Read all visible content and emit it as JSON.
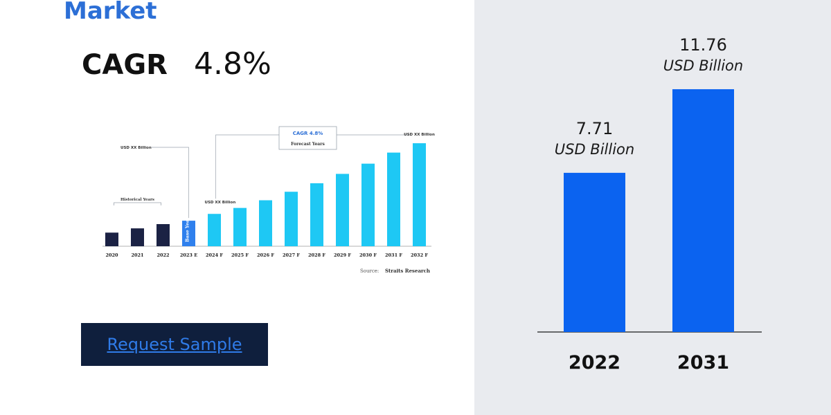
{
  "header": {
    "title": "Market",
    "cagr_label": "CAGR",
    "cagr_value": "4.8%"
  },
  "button": {
    "label": "Request Sample"
  },
  "colors": {
    "accent": "#2c6fd6",
    "historical_bar": "#1b2244",
    "base_year_bar": "#2f80ed",
    "forecast_bar": "#1ec8f4",
    "main_bar": "#0b63f0",
    "button_bg": "#0f1f3d"
  },
  "chart_data": [
    {
      "type": "bar",
      "categories": [
        "2020",
        "2021",
        "2022",
        "2023 E",
        "2024 F",
        "2025 F",
        "2026 F",
        "2027 F",
        "2028 F",
        "2029 F",
        "2030 F",
        "2031 F",
        "2032 F"
      ],
      "values": [
        16,
        21,
        26,
        30,
        38,
        45,
        54,
        64,
        74,
        85,
        97,
        110,
        121
      ],
      "bar_kinds": [
        "historical",
        "historical",
        "historical",
        "base",
        "forecast",
        "forecast",
        "forecast",
        "forecast",
        "forecast",
        "forecast",
        "forecast",
        "forecast",
        "forecast"
      ],
      "ylim": [
        0,
        130
      ],
      "annotations": {
        "usd_xx_left": "USD XX Billion",
        "usd_xx_mid": "USD XX Billion",
        "usd_xx_right": "USD XX Billion",
        "historical_years": "Historical Years",
        "cagr_box": "CAGR 4.8%",
        "forecast_years": "Forecast Years",
        "base_year": "Base Year",
        "source_label": "Source:",
        "source_name": "Straits Research"
      }
    },
    {
      "type": "bar",
      "categories": [
        "2022",
        "2031"
      ],
      "values": [
        7.71,
        11.76
      ],
      "value_labels": [
        "7.71",
        "11.76"
      ],
      "unit_label": "USD Billion",
      "ylim": [
        0,
        13.2
      ]
    }
  ]
}
